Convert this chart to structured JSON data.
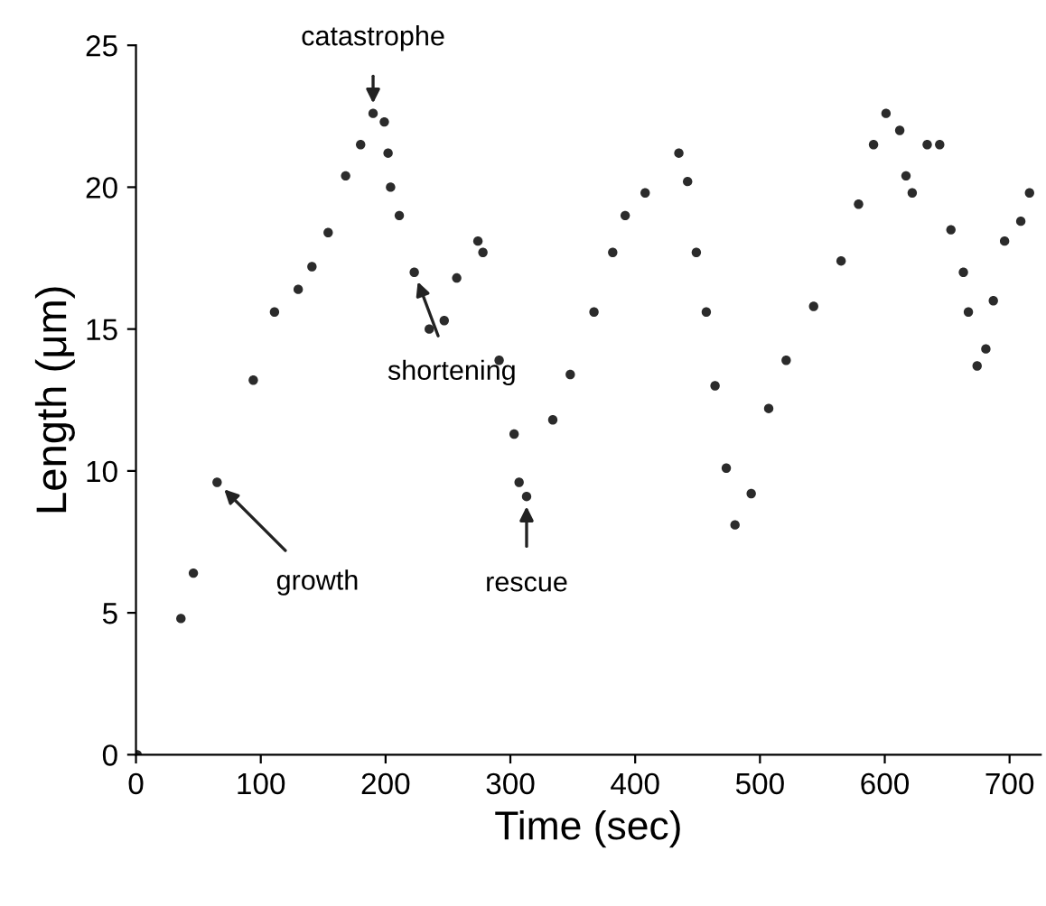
{
  "chart_data": {
    "type": "scatter",
    "xlabel": "Time (sec)",
    "ylabel": "Length (μm)",
    "xlim": [
      0,
      725
    ],
    "ylim": [
      0,
      25
    ],
    "xticks": [
      0,
      100,
      200,
      300,
      400,
      500,
      600,
      700
    ],
    "yticks": [
      0,
      5,
      10,
      15,
      20,
      25
    ],
    "grid": false,
    "legend": false,
    "marker": "circle",
    "series": [
      {
        "color": "#2b2b2b",
        "x": [
          1,
          36,
          46,
          65,
          94,
          111,
          130,
          141,
          154,
          168,
          180,
          190,
          199,
          202,
          204,
          211,
          223,
          235,
          247,
          257,
          274,
          278,
          291,
          303,
          307,
          313,
          334,
          348,
          367,
          382,
          392,
          408,
          435,
          442,
          449,
          457,
          464,
          473,
          480,
          493,
          507,
          521,
          543,
          565,
          579,
          591,
          601,
          612,
          617,
          622,
          634,
          644,
          653,
          663,
          667,
          674,
          681,
          687,
          696,
          709,
          716
        ],
        "values": [
          0,
          4.8,
          6.4,
          9.6,
          13.2,
          15.6,
          16.4,
          17.2,
          18.4,
          20.4,
          21.5,
          22.6,
          22.3,
          21.2,
          20,
          19,
          17,
          15,
          15.3,
          16.8,
          18.1,
          17.7,
          13.9,
          11.3,
          9.6,
          9.1,
          11.8,
          13.4,
          15.6,
          17.7,
          19,
          19.8,
          21.2,
          20.2,
          17.7,
          15.6,
          13,
          10.1,
          8.1,
          9.2,
          12.2,
          13.9,
          15.8,
          17.4,
          19.4,
          21.5,
          22.6,
          22,
          20.4,
          19.8,
          21.5,
          21.5,
          18.5,
          17,
          15.6,
          13.7,
          14.3,
          16,
          18.1,
          18.8,
          19.8
        ]
      }
    ],
    "annotations": [
      {
        "text": "catastrophe",
        "x": 190,
        "y": 22.6
      },
      {
        "text": "shortening",
        "x": 223,
        "y": 17
      },
      {
        "text": "growth",
        "x": 65,
        "y": 9.6
      },
      {
        "text": "rescue",
        "x": 313,
        "y": 9.1
      }
    ]
  }
}
